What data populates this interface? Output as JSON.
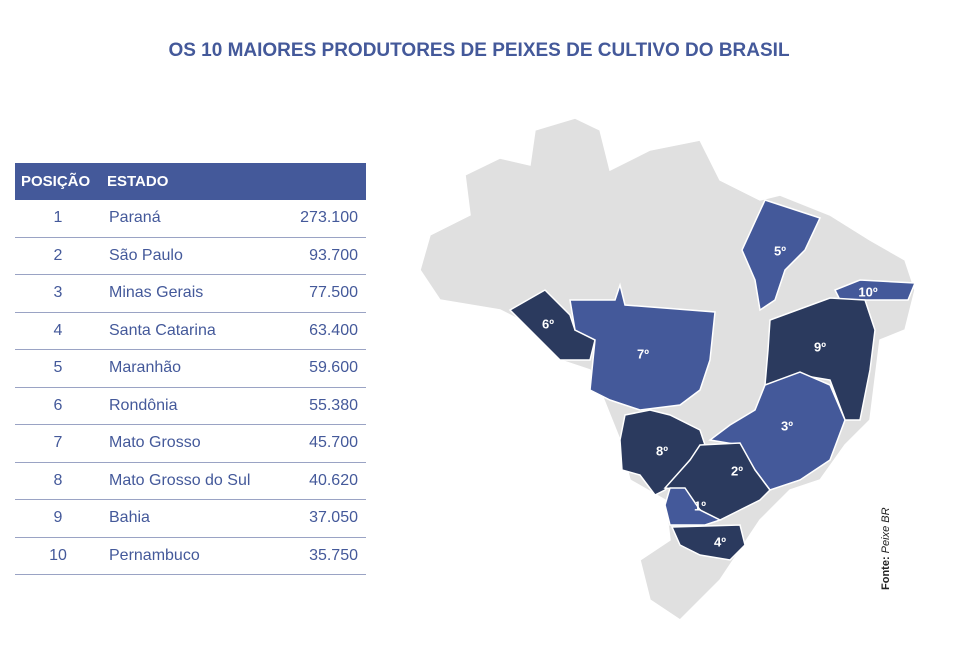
{
  "title": "OS 10 MAIORES PRODUTORES DE PEIXES DE CULTIVO DO BRASIL",
  "table": {
    "header": [
      "POSIÇÃO",
      "ESTADO"
    ],
    "rows": [
      [
        "1",
        "Paraná",
        "273.100"
      ],
      [
        "2",
        "São Paulo",
        "93.700"
      ],
      [
        "3",
        "Minas Gerais",
        "77.500"
      ],
      [
        "4",
        "Santa Catarina",
        "63.400"
      ],
      [
        "5",
        "Maranhão",
        "59.600"
      ],
      [
        "6",
        "Rondônia",
        "55.380"
      ],
      [
        "7",
        "Mato Grosso",
        "45.700"
      ],
      [
        "8",
        "Mato Grosso do Sul",
        "40.620"
      ],
      [
        "9",
        "Bahia",
        "37.050"
      ],
      [
        "10",
        "Pernambuco",
        "35.750"
      ]
    ]
  },
  "map": {
    "labels": [
      "1º",
      "2º",
      "3º",
      "4º",
      "5º",
      "6º",
      "7º",
      "8º",
      "9º",
      "10º"
    ]
  },
  "source": {
    "label": "Fonte:",
    "text": "Peixe BR"
  }
}
